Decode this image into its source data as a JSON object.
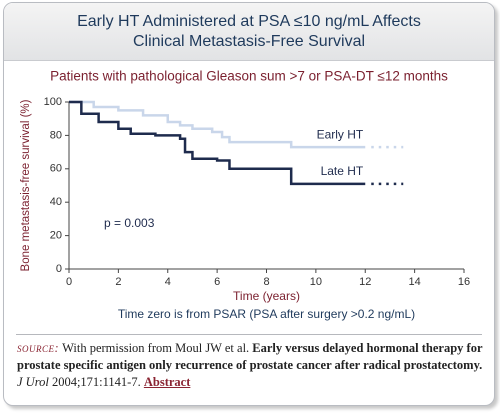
{
  "chart_data": {
    "type": "step",
    "title": [
      "Early HT Administered at PSA ≤10 ng/mL Affects",
      "Clinical Metastasis-Free Survival"
    ],
    "subtitle": "Patients with pathological Gleason sum >7 or PSA-DT ≤12 months",
    "x_label": "Time (years)",
    "y_label": "Bone metastasis-free survival (%)",
    "note": "Time zero is from PSAR (PSA after surgery >0.2 ng/mL)",
    "annotation": "p = 0.003",
    "xlim": [
      0,
      16
    ],
    "xticks": [
      0,
      2,
      4,
      6,
      8,
      10,
      12,
      14,
      16
    ],
    "ylim": [
      0,
      100
    ],
    "yticks": [
      0,
      20,
      40,
      60,
      80,
      100
    ],
    "series": [
      {
        "name": "Early HT",
        "color": "#c9d6ea",
        "x": [
          0,
          1,
          2,
          3,
          4,
          4.5,
          5,
          5.8,
          6.2,
          6.5,
          9,
          12
        ],
        "values": [
          100,
          97,
          95,
          92,
          88,
          86,
          84,
          82,
          79,
          76,
          73,
          73
        ]
      },
      {
        "name": "Late HT",
        "color": "#1e2b4d",
        "x": [
          0,
          0.5,
          1.2,
          2,
          2.5,
          3.5,
          4.5,
          4.7,
          5,
          6,
          6.5,
          9,
          12
        ],
        "values": [
          100,
          93,
          88,
          84,
          81,
          80,
          78,
          70,
          66,
          65,
          60,
          51,
          51
        ]
      }
    ]
  },
  "source": {
    "label": "source:",
    "text": "With permission from Moul JW et al.",
    "article": "Early versus delayed hormonal therapy for prostate specific antigen only recurrence of prostate cancer after radical prostatectomy.",
    "journal": "J Urol",
    "citation": "2004;171:1141-7.",
    "link": "Abstract"
  }
}
